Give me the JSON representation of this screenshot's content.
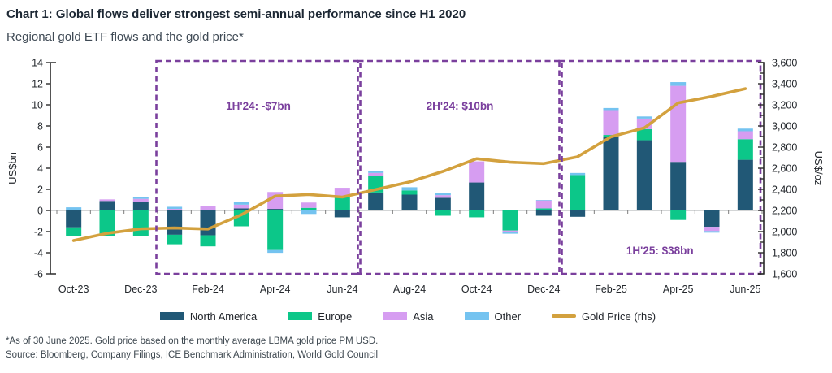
{
  "header": {
    "title": "Chart 1: Global flows deliver strongest semi-annual performance since H1 2020",
    "subtitle": "Regional gold ETF flows and the gold price*"
  },
  "chart_data": {
    "type": "bar",
    "subtype": "stacked-bars-with-line",
    "x": [
      "Oct-23",
      "Nov-23",
      "Dec-23",
      "Jan-24",
      "Feb-24",
      "Mar-24",
      "Apr-24",
      "May-24",
      "Jun-24",
      "Jul-24",
      "Aug-24",
      "Sep-24",
      "Oct-24",
      "Nov-24",
      "Dec-24",
      "Jan-25",
      "Feb-25",
      "Mar-25",
      "Apr-25",
      "May-25",
      "Jun-25"
    ],
    "x_tick_labels": [
      "Oct-23",
      "Dec-23",
      "Feb-24",
      "Apr-24",
      "Jun-24",
      "Aug-24",
      "Oct-24",
      "Dec-24",
      "Feb-25",
      "Apr-25",
      "Jun-25"
    ],
    "ylabel_left": "US$bn",
    "ylabel_right": "US$/oz",
    "ylim_left": [
      -6,
      14
    ],
    "ytick_step_left": 2,
    "ylim_right": [
      1600,
      3600
    ],
    "ytick_step_right": 200,
    "ytick_minor_step_right": 100,
    "grid": "zero-line-only",
    "legend_position": "bottom-center",
    "series": [
      {
        "name": "North America",
        "color": "#215876",
        "values": [
          -1.6,
          0.9,
          0.8,
          -2.3,
          -2.35,
          0.2,
          0.15,
          0.05,
          -0.65,
          1.7,
          1.5,
          1.2,
          2.65,
          0,
          -0.5,
          -0.6,
          7.0,
          6.65,
          4.6,
          -1.55,
          4.8
        ]
      },
      {
        "name": "Europe",
        "color": "#0cc789",
        "values": [
          -0.85,
          -2.4,
          -2.4,
          -0.9,
          -1.05,
          -1.5,
          -3.75,
          0.2,
          1.3,
          1.55,
          0.4,
          -0.5,
          -0.65,
          -1.9,
          0.2,
          3.35,
          0.15,
          1.05,
          -0.9,
          0,
          1.95
        ]
      },
      {
        "name": "Asia",
        "color": "#d69df1",
        "values": [
          0,
          0.15,
          0.3,
          0.15,
          0.45,
          0.35,
          1.6,
          0.5,
          0.85,
          0.3,
          0,
          0.25,
          2.0,
          -0.15,
          0.75,
          0,
          2.35,
          1.0,
          7.2,
          -0.4,
          0.75
        ]
      },
      {
        "name": "Other",
        "color": "#74c3f0",
        "values": [
          0.3,
          0,
          0.2,
          0.2,
          0,
          0.25,
          -0.26,
          -0.33,
          0,
          0.2,
          0.3,
          0.2,
          0,
          -0.15,
          0.05,
          0.2,
          0.2,
          0.2,
          0.35,
          -0.15,
          0.25
        ]
      }
    ],
    "line_series": {
      "name": "Gold Price (rhs)",
      "color": "#d3a13e",
      "axis": "right",
      "values": [
        1915,
        1984,
        2026,
        2034,
        2024,
        2160,
        2336,
        2351,
        2327,
        2398,
        2470,
        2570,
        2690,
        2657,
        2644,
        2708,
        2897,
        2983,
        3218,
        3280,
        3353
      ]
    },
    "annotations": [
      {
        "label": "1H'24: -$7bn",
        "from": "Jan-24",
        "to": "Jun-24",
        "label_pos": "top",
        "color": "#7a3f9d"
      },
      {
        "label": "2H'24: $10bn",
        "from": "Jul-24",
        "to": "Dec-24",
        "label_pos": "top",
        "color": "#7a3f9d"
      },
      {
        "label": "1H'25: $38bn",
        "from": "Jan-25",
        "to": "Jun-25",
        "label_pos": "bottom",
        "color": "#7a3f9d"
      }
    ],
    "colors": {
      "north_america": "#215876",
      "europe": "#0cc789",
      "asia": "#d69df1",
      "other": "#74c3f0",
      "gold_line": "#d3a13e",
      "annotation_purple": "#7a3f9d",
      "zero_line": "#b9bcbe",
      "axis": "#2a2a2a"
    }
  },
  "legend": {
    "items": [
      {
        "label": "North America",
        "color": "#215876",
        "shape": "rect"
      },
      {
        "label": "Europe",
        "color": "#0cc789",
        "shape": "rect"
      },
      {
        "label": "Asia",
        "color": "#d69df1",
        "shape": "rect"
      },
      {
        "label": "Other",
        "color": "#74c3f0",
        "shape": "rect"
      },
      {
        "label": "Gold Price (rhs)",
        "color": "#d3a13e",
        "shape": "line"
      }
    ]
  },
  "footnotes": {
    "line1": "*As of 30 June 2025. Gold price based on the monthly average LBMA gold price PM USD.",
    "line2": "Source: Bloomberg, Company Filings, ICE Benchmark Administration, World Gold Council"
  }
}
